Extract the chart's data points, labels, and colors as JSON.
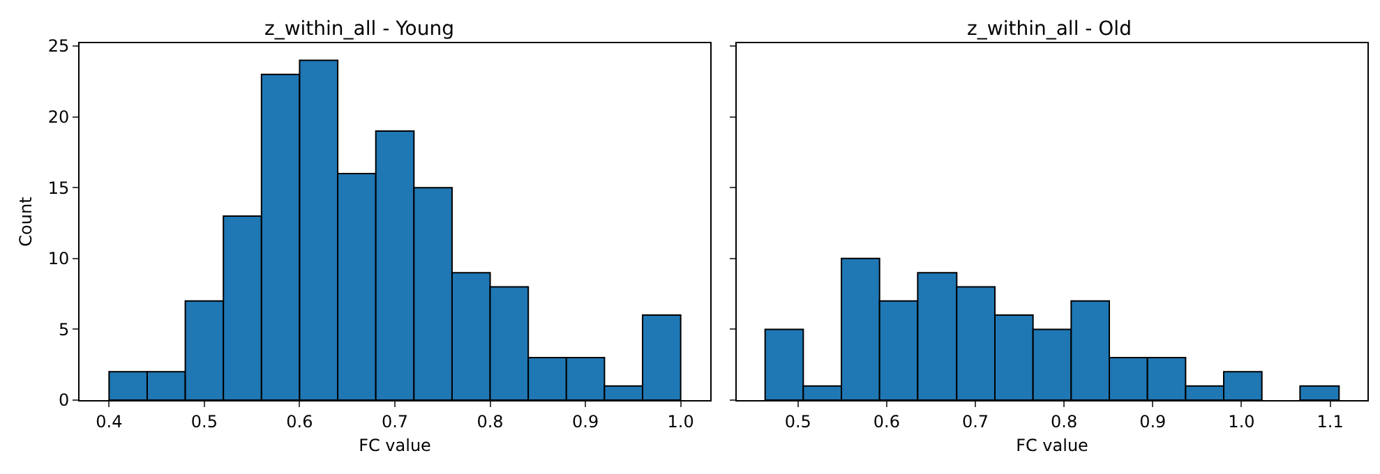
{
  "chart_data": [
    {
      "type": "histogram",
      "title": "z_within_all - Young",
      "xlabel": "FC value",
      "ylabel": "Count",
      "color": "#1f77b4",
      "bins": [
        0.4,
        0.44,
        0.48,
        0.52,
        0.56,
        0.6,
        0.64,
        0.68,
        0.72,
        0.76,
        0.8,
        0.84,
        0.88,
        0.92,
        0.96,
        1.0
      ],
      "values": [
        2,
        2,
        7,
        13,
        23,
        24,
        16,
        19,
        15,
        9,
        8,
        3,
        3,
        1,
        6
      ],
      "xlim": [
        0.369,
        1.031
      ],
      "xticks": [
        {
          "value": 0.4,
          "label": "0.4"
        },
        {
          "value": 0.5,
          "label": "0.5"
        },
        {
          "value": 0.6,
          "label": "0.6"
        },
        {
          "value": 0.7,
          "label": "0.7"
        },
        {
          "value": 0.8,
          "label": "0.8"
        },
        {
          "value": 0.9,
          "label": "0.9"
        },
        {
          "value": 1.0,
          "label": "1.0"
        }
      ],
      "ylim": [
        0,
        25.2
      ],
      "yticks": [
        0,
        5,
        10,
        15,
        20,
        25
      ],
      "grid": false,
      "legend": false
    },
    {
      "type": "histogram",
      "title": "z_within_all - Old",
      "xlabel": "FC value",
      "color": "#1f77b4",
      "bins": [
        0.463,
        0.506,
        0.549,
        0.592,
        0.635,
        0.679,
        0.722,
        0.765,
        0.808,
        0.851,
        0.894,
        0.937,
        0.98,
        1.023,
        1.066,
        1.11
      ],
      "values": [
        5,
        1,
        10,
        7,
        9,
        8,
        6,
        5,
        7,
        3,
        3,
        1,
        2,
        0,
        1
      ],
      "xlim": [
        0.431,
        1.142
      ],
      "xticks": [
        {
          "value": 0.5,
          "label": "0.5"
        },
        {
          "value": 0.6,
          "label": "0.6"
        },
        {
          "value": 0.7,
          "label": "0.7"
        },
        {
          "value": 0.8,
          "label": "0.8"
        },
        {
          "value": 0.9,
          "label": "0.9"
        },
        {
          "value": 1.0,
          "label": "1.0"
        },
        {
          "value": 1.1,
          "label": "1.1"
        }
      ],
      "ylim": [
        0,
        25.2
      ],
      "yticks": [
        0,
        5,
        10,
        15,
        20,
        25
      ],
      "tick_labels": "x",
      "grid": false,
      "legend": false
    }
  ]
}
